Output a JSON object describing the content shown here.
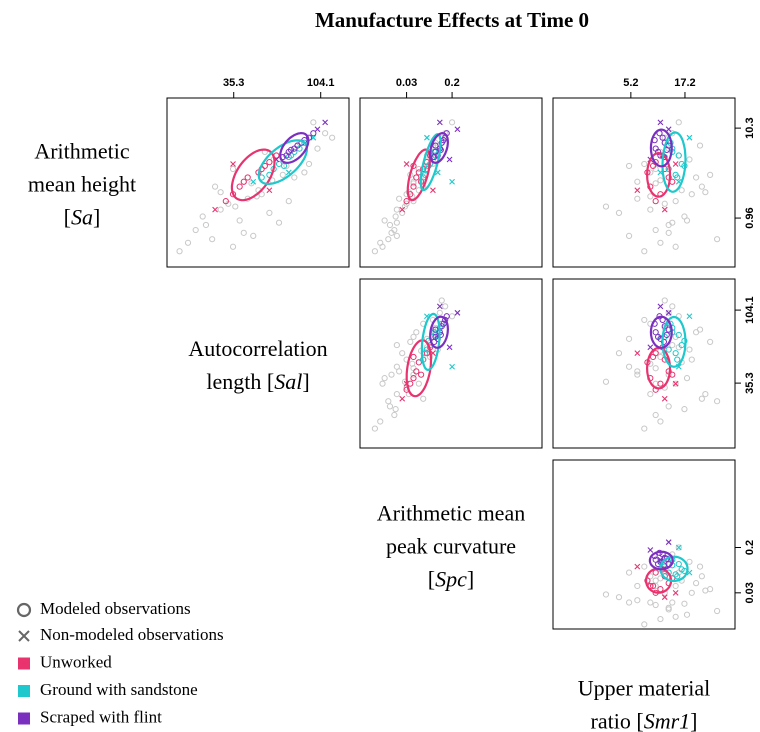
{
  "chart_data": {
    "type": "scatter",
    "title": "Manufacture Effects at Time 0",
    "log_scale": true,
    "variables": [
      {
        "label": [
          [
            {
              "text": "Arithmetic"
            }
          ],
          [
            {
              "text": "mean height"
            }
          ],
          [
            {
              "text": "["
            },
            {
              "text": "Sa",
              "italic": true
            },
            {
              "text": "]"
            }
          ]
        ],
        "ticks": [
          0.96,
          10.3
        ]
      },
      {
        "label": [
          [
            {
              "text": "Autocorrelation"
            }
          ],
          [
            {
              "text": "length ["
            },
            {
              "text": "Sal",
              "italic": true
            },
            {
              "text": "]"
            }
          ]
        ],
        "ticks": [
          35.3,
          104.1
        ]
      },
      {
        "label": [
          [
            {
              "text": "Arithmetic mean"
            }
          ],
          [
            {
              "text": "peak curvature"
            }
          ],
          [
            {
              "text": "["
            },
            {
              "text": "Spc",
              "italic": true
            },
            {
              "text": "]"
            }
          ]
        ],
        "ticks": [
          0.03,
          0.2
        ]
      },
      {
        "label": [
          [
            {
              "text": "Upper material"
            }
          ],
          [
            {
              "text": "ratio ["
            },
            {
              "text": "Smr1",
              "italic": true
            },
            {
              "text": "]"
            }
          ]
        ],
        "ticks": [
          5.2,
          17.2
        ]
      }
    ],
    "panels": [
      {
        "x": 1,
        "y": 0,
        "xlim": [
          15.4,
          148
        ],
        "ylim": [
          0.264,
          22.8
        ],
        "ellipses": [
          {
            "cx": 45,
            "cy": 3.0,
            "sx": 0.115,
            "sy": 0.29,
            "r": 0.5
          },
          {
            "cx": 65,
            "cy": 4.2,
            "sx": 0.13,
            "sy": 0.25,
            "r": 0.6
          },
          {
            "cx": 75,
            "cy": 6.1,
            "sx": 0.076,
            "sy": 0.17,
            "r": 0.5
          }
        ]
      },
      {
        "x": 2,
        "y": 0,
        "xlim": [
          0.0043,
          8.5
        ],
        "ylim": [
          0.264,
          22.8
        ],
        "ellipses": [
          {
            "cx": 0.05,
            "cy": 3.0,
            "sx": 0.2,
            "sy": 0.29,
            "r": 0.6
          },
          {
            "cx": 0.082,
            "cy": 4.2,
            "sx": 0.18,
            "sy": 0.32,
            "r": 0.7
          },
          {
            "cx": 0.116,
            "cy": 6.1,
            "sx": 0.16,
            "sy": 0.17,
            "r": 0.4
          }
        ]
      },
      {
        "x": 3,
        "y": 0,
        "xlim": [
          0.93,
          52
        ],
        "ylim": [
          0.264,
          22.8
        ],
        "ellipses": [
          {
            "cx": 9.6,
            "cy": 3.0,
            "sx": 0.11,
            "sy": 0.25,
            "r": 0
          },
          {
            "cx": 13.5,
            "cy": 4.2,
            "sx": 0.11,
            "sy": 0.34,
            "r": 0.1
          },
          {
            "cx": 10.2,
            "cy": 6.1,
            "sx": 0.1,
            "sy": 0.21,
            "r": 0
          }
        ]
      },
      {
        "x": 2,
        "y": 1,
        "xlim": [
          0.0043,
          8.5
        ],
        "ylim": [
          13.5,
          165
        ],
        "ellipses": [
          {
            "cx": 0.05,
            "cy": 44,
            "sx": 0.22,
            "sy": 0.18,
            "r": 0.3
          },
          {
            "cx": 0.082,
            "cy": 65,
            "sx": 0.16,
            "sy": 0.18,
            "r": 0.3
          },
          {
            "cx": 0.116,
            "cy": 75,
            "sx": 0.16,
            "sy": 0.1,
            "r": 0.2
          }
        ]
      },
      {
        "x": 3,
        "y": 1,
        "xlim": [
          0.93,
          52
        ],
        "ylim": [
          13.5,
          165
        ],
        "ellipses": [
          {
            "cx": 9.6,
            "cy": 44,
            "sx": 0.11,
            "sy": 0.13,
            "r": 0
          },
          {
            "cx": 13.5,
            "cy": 65,
            "sx": 0.11,
            "sy": 0.16,
            "r": 0
          },
          {
            "cx": 10.2,
            "cy": 75,
            "sx": 0.1,
            "sy": 0.1,
            "r": 0
          }
        ]
      },
      {
        "x": 3,
        "y": 2,
        "xlim": [
          0.93,
          52
        ],
        "ylim": [
          0.0066,
          7.8
        ],
        "ellipses": [
          {
            "cx": 9.6,
            "cy": 0.05,
            "sx": 0.12,
            "sy": 0.22,
            "r": 0
          },
          {
            "cx": 13.5,
            "cy": 0.082,
            "sx": 0.13,
            "sy": 0.22,
            "r": 0
          },
          {
            "cx": 10.2,
            "cy": 0.116,
            "sx": 0.11,
            "sy": 0.16,
            "r": 0
          }
        ]
      }
    ],
    "background": {
      "color": "#c8c8c8",
      "modeled": [
        [
          1.2,
          30,
          0.02,
          8
        ],
        [
          0.8,
          25,
          0.015,
          12
        ],
        [
          2.5,
          40,
          0.04,
          6
        ],
        [
          5,
          60,
          0.07,
          15
        ],
        [
          0.5,
          20,
          0.01,
          10
        ],
        [
          1.8,
          50,
          0.03,
          20
        ],
        [
          3.5,
          35,
          0.05,
          9
        ],
        [
          7,
          80,
          0.1,
          11
        ],
        [
          0.6,
          45,
          0.02,
          5
        ],
        [
          1.5,
          70,
          0.04,
          14
        ],
        [
          2.2,
          28,
          0.06,
          25
        ],
        [
          4,
          90,
          0.09,
          7
        ],
        [
          0.9,
          38,
          0.012,
          18
        ],
        [
          1.1,
          55,
          0.025,
          4
        ],
        [
          3,
          65,
          0.035,
          30
        ],
        [
          6,
          100,
          0.12,
          12
        ],
        [
          0.7,
          22,
          0.018,
          9
        ],
        [
          2,
          48,
          0.05,
          16
        ],
        [
          1.4,
          33,
          0.03,
          11
        ],
        [
          9,
          110,
          0.15,
          13
        ],
        [
          0.4,
          18,
          0.008,
          7
        ],
        [
          2.8,
          75,
          0.045,
          22
        ],
        [
          1.6,
          42,
          0.022,
          6
        ],
        [
          5.5,
          52,
          0.08,
          10
        ],
        [
          0.55,
          27,
          0.014,
          35
        ],
        [
          3.2,
          85,
          0.06,
          8
        ],
        [
          1.3,
          36,
          0.028,
          3
        ],
        [
          4.5,
          58,
          0.11,
          19
        ],
        [
          0.85,
          62,
          0.02,
          13
        ],
        [
          2.4,
          44,
          0.04,
          9
        ],
        [
          12,
          95,
          0.2,
          15
        ],
        [
          1.9,
          30,
          0.033,
          27
        ],
        [
          0.65,
          40,
          0.016,
          12
        ],
        [
          3.8,
          68,
          0.07,
          5
        ],
        [
          1,
          24,
          0.019,
          17
        ],
        [
          2.6,
          57,
          0.055,
          10
        ],
        [
          0.45,
          35,
          0.011,
          14
        ],
        [
          6.5,
          78,
          0.09,
          24
        ],
        [
          1.7,
          47,
          0.038,
          8
        ],
        [
          8,
          120,
          0.13,
          11
        ]
      ]
    },
    "series": [
      {
        "name": "Unworked",
        "color": "#e8336f",
        "modeled": [
          [
            2.2,
            38,
            0.04,
            8
          ],
          [
            3.5,
            50,
            0.06,
            11
          ],
          [
            1.8,
            35,
            0.035,
            10
          ],
          [
            4.2,
            55,
            0.07,
            9
          ],
          [
            2.8,
            42,
            0.045,
            12
          ],
          [
            3.2,
            48,
            0.05,
            7.5
          ],
          [
            1.5,
            32,
            0.03,
            9
          ],
          [
            5,
            60,
            0.08,
            10.5
          ],
          [
            2.5,
            40,
            0.055,
            13
          ],
          [
            3.8,
            52,
            0.04,
            8.5
          ]
        ],
        "non_modeled": [
          [
            1.2,
            28,
            0.025,
            11
          ],
          [
            2,
            55,
            0.09,
            6
          ],
          [
            4,
            35,
            0.03,
            14
          ]
        ]
      },
      {
        "name": "Ground with sandstone",
        "color": "#1ec8cc",
        "modeled": [
          [
            3.5,
            58,
            0.07,
            12
          ],
          [
            5,
            72,
            0.1,
            15
          ],
          [
            3,
            55,
            0.065,
            14
          ],
          [
            6,
            80,
            0.12,
            13
          ],
          [
            4,
            62,
            0.08,
            16
          ],
          [
            4.8,
            70,
            0.09,
            11
          ],
          [
            2.8,
            50,
            0.06,
            14.5
          ],
          [
            7,
            85,
            0.13,
            12.5
          ],
          [
            3.8,
            66,
            0.075,
            17
          ],
          [
            5.5,
            75,
            0.095,
            13
          ]
        ],
        "non_modeled": [
          [
            2.5,
            45,
            0.2,
            15
          ],
          [
            8,
            95,
            0.07,
            19
          ],
          [
            3.2,
            70,
            0.11,
            10
          ]
        ]
      },
      {
        "name": "Scraped with flint",
        "color": "#7b2fbf",
        "modeled": [
          [
            5.5,
            70,
            0.1,
            9.5
          ],
          [
            7,
            82,
            0.13,
            11
          ],
          [
            5,
            68,
            0.11,
            10
          ],
          [
            8,
            90,
            0.15,
            10.5
          ],
          [
            6,
            75,
            0.12,
            9
          ],
          [
            6.5,
            78,
            0.1,
            12
          ],
          [
            4.8,
            65,
            0.095,
            10.8
          ],
          [
            9,
            95,
            0.16,
            9.8
          ],
          [
            5.8,
            72,
            0.125,
            11.5
          ],
          [
            7.5,
            85,
            0.14,
            8.8
          ]
        ],
        "non_modeled": [
          [
            10,
            100,
            0.25,
            12
          ],
          [
            4.5,
            60,
            0.18,
            8
          ],
          [
            12,
            110,
            0.12,
            10
          ]
        ]
      }
    ],
    "modeled_label": "Modeled observations",
    "non_modeled_label": "Non-modeled observations",
    "legend_marker_color": "#666666"
  }
}
